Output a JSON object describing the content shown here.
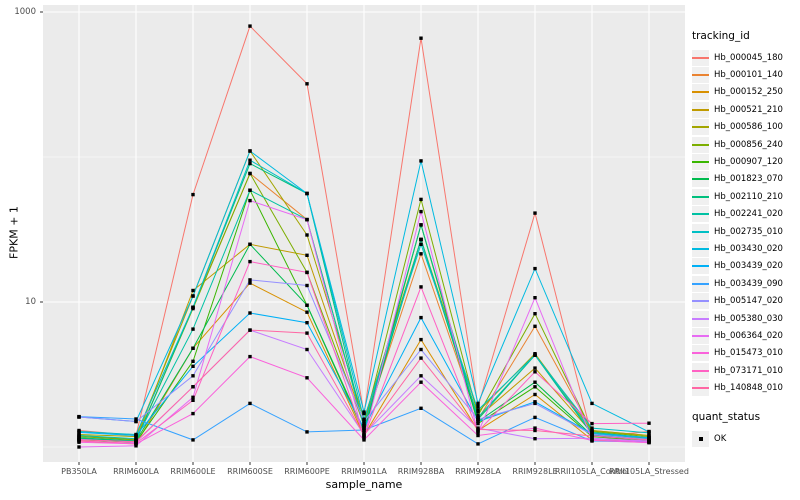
{
  "figure": {
    "background": "#ffffff",
    "panel_bg": "#ebebeb",
    "grid_color": "#ffffff",
    "tick_color": "#333333",
    "tick_label_color": "#4d4d4d",
    "point_color": "#000000"
  },
  "chart_data": {
    "type": "line",
    "title": "",
    "xlabel": "sample_name",
    "ylabel": "FPKM + 1",
    "y_scale": "log10",
    "ylim": [
      0.79,
      1118
    ],
    "y_ticks": [
      {
        "label": "10",
        "value": 10
      },
      {
        "label": "1000",
        "value": 1000
      }
    ],
    "y_minor_gridlines": [
      1,
      100
    ],
    "grid": true,
    "legend_position": "right",
    "legend_title": "tracking_id",
    "categories": [
      "PB350LA",
      "RRIM600LA",
      "RRIM600LE",
      "RRIM600SE",
      "RRIM600PE",
      "RRIM901LA",
      "RRIM928BA",
      "RRIM928LA",
      "RRIM928LE",
      "RRII105LA_Control",
      "RRII105LA_Stressed"
    ],
    "series": [
      {
        "name": "Hb_000045_180",
        "color": "#F8766D",
        "values": [
          1.3,
          1.2,
          55,
          800,
          320,
          1.7,
          660,
          1.9,
          41,
          1.17,
          1.28
        ]
      },
      {
        "name": "Hb_000101_140",
        "color": "#EA8331",
        "values": [
          1.15,
          1.1,
          9.2,
          77,
          37,
          1.4,
          21.5,
          1.55,
          6.8,
          1.3,
          1.2
        ]
      },
      {
        "name": "Hb_000152_250",
        "color": "#D89000",
        "values": [
          1.1,
          1.05,
          4.8,
          13.5,
          8.5,
          1.2,
          5.5,
          1.3,
          2.3,
          1.12,
          1.08
        ]
      },
      {
        "name": "Hb_000521_210",
        "color": "#C09B00",
        "values": [
          1.2,
          1.12,
          12,
          25,
          21,
          1.45,
          27,
          1.6,
          3.5,
          1.25,
          1.15
        ]
      },
      {
        "name": "Hb_000586_100",
        "color": "#A3A500",
        "values": [
          1.22,
          1.18,
          11,
          110,
          29,
          1.55,
          27,
          1.75,
          4.4,
          1.3,
          1.2
        ]
      },
      {
        "name": "Hb_000856_240",
        "color": "#7CAE00",
        "values": [
          1.18,
          1.12,
          9.0,
          77,
          16,
          1.42,
          51,
          1.65,
          8.3,
          1.28,
          1.18
        ]
      },
      {
        "name": "Hb_000907_120",
        "color": "#39B600",
        "values": [
          1.12,
          1.08,
          3.9,
          59,
          9.5,
          1.25,
          34,
          1.45,
          2.6,
          1.18,
          1.1
        ]
      },
      {
        "name": "Hb_001823_070",
        "color": "#00BB4E",
        "values": [
          1.14,
          1.1,
          4.8,
          25,
          9.5,
          1.3,
          27,
          1.5,
          2.8,
          1.2,
          1.12
        ]
      },
      {
        "name": "Hb_002110_210",
        "color": "#00BF7D",
        "values": [
          1.16,
          1.1,
          9.2,
          90,
          56,
          1.35,
          34,
          1.55,
          4.3,
          1.22,
          1.14
        ]
      },
      {
        "name": "Hb_002241_020",
        "color": "#00C1A3",
        "values": [
          1.2,
          1.14,
          6.5,
          59,
          37,
          1.4,
          27,
          1.6,
          4.3,
          1.26,
          1.16
        ]
      },
      {
        "name": "Hb_002735_010",
        "color": "#00BFC4",
        "values": [
          1.28,
          1.22,
          9.2,
          95,
          56,
          1.55,
          25,
          1.8,
          4.3,
          1.35,
          1.25
        ]
      },
      {
        "name": "Hb_003430_020",
        "color": "#00BAE0",
        "values": [
          1.61,
          1.5,
          11,
          110,
          56,
          1.74,
          94,
          2.0,
          17,
          2.0,
          1.27
        ]
      },
      {
        "name": "Hb_003439_020",
        "color": "#00B0F6",
        "values": [
          1.26,
          1.2,
          3.6,
          8.4,
          7.2,
          1.35,
          7.8,
          1.5,
          2.05,
          1.24,
          1.16
        ]
      },
      {
        "name": "Hb_003439_090",
        "color": "#35A2FF",
        "values": [
          1.62,
          1.56,
          1.12,
          2.0,
          1.27,
          1.31,
          1.85,
          1.05,
          1.6,
          1.1,
          1.08
        ]
      },
      {
        "name": "Hb_005147_020",
        "color": "#9590FF",
        "values": [
          1.61,
          1.5,
          3.1,
          14.2,
          13,
          1.5,
          4.7,
          1.55,
          2.0,
          1.22,
          1.13
        ]
      },
      {
        "name": "Hb_005380_030",
        "color": "#C77CFF",
        "values": [
          1.13,
          1.08,
          2.6,
          6.4,
          4.7,
          1.22,
          3.1,
          1.35,
          1.14,
          1.15,
          1.1
        ]
      },
      {
        "name": "Hb_006364_020",
        "color": "#E76BF3",
        "values": [
          1.0,
          1.02,
          2.2,
          50,
          37,
          1.15,
          42,
          1.25,
          10.7,
          1.13,
          1.09
        ]
      },
      {
        "name": "Hb_015473_010",
        "color": "#FA62DB",
        "values": [
          1.08,
          1.05,
          1.7,
          4.2,
          3.0,
          1.12,
          2.8,
          1.2,
          1.35,
          1.11,
          1.07
        ]
      },
      {
        "name": "Hb_073171_010",
        "color": "#FF61C3",
        "values": [
          1.1,
          1.06,
          2.1,
          19,
          16,
          1.18,
          12.7,
          1.28,
          3.3,
          1.45,
          1.46
        ]
      },
      {
        "name": "Hb_140848_010",
        "color": "#FF67A4",
        "values": [
          1.12,
          1.09,
          2.6,
          6.4,
          6.1,
          1.2,
          4.1,
          1.32,
          1.3,
          1.19,
          1.12
        ]
      }
    ],
    "quant_legend": {
      "title": "quant_status",
      "items": [
        {
          "label": "OK"
        }
      ]
    }
  }
}
